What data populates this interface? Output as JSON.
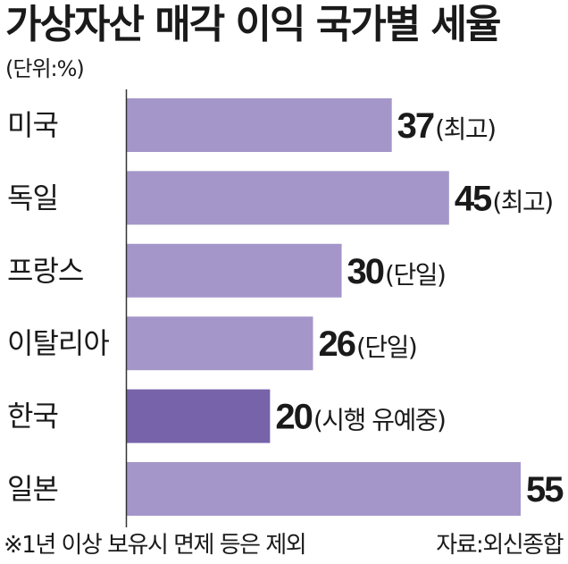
{
  "title": "가상자산 매각 이익 국가별 세율",
  "unit": "(단위:%)",
  "footnote": "※1년 이상 보유시 면제 등은 제외",
  "source": "자료:외신종합",
  "colors": {
    "bar": "#a496c9",
    "highlight_bar": "#7763a9",
    "axis": "#333333"
  },
  "chart_data": {
    "type": "bar",
    "orientation": "horizontal",
    "categories": [
      "미국",
      "독일",
      "프랑스",
      "이탈리아",
      "한국",
      "일본"
    ],
    "values": [
      37,
      45,
      30,
      26,
      20,
      55
    ],
    "value_labels": [
      "37",
      "45",
      "30",
      "26",
      "20",
      "55"
    ],
    "value_notes": [
      "(최고)",
      "(최고)",
      "(단일)",
      "(단일)",
      "(시행 유예중)",
      ""
    ],
    "highlight": "한국",
    "xlim": [
      0,
      55
    ],
    "grid": false,
    "legend": "none"
  }
}
